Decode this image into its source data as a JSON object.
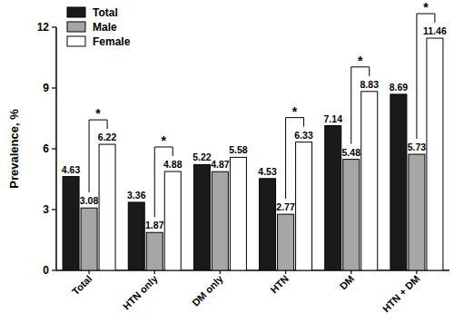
{
  "chart_data": {
    "type": "bar",
    "ylabel": "Prevalence, %",
    "categories": [
      "Total",
      "HTN only",
      "DM only",
      "HTN",
      "DM",
      "HTN + DM"
    ],
    "series": [
      {
        "name": "Total",
        "color": "#1a1a1a",
        "values": [
          4.63,
          3.36,
          5.22,
          4.53,
          7.14,
          8.69
        ]
      },
      {
        "name": "Male",
        "color": "#a6a6a6",
        "values": [
          3.08,
          1.87,
          4.87,
          2.77,
          5.48,
          5.73
        ]
      },
      {
        "name": "Female",
        "color": "#ffffff",
        "values": [
          6.22,
          4.88,
          5.58,
          6.33,
          8.83,
          11.46
        ]
      }
    ],
    "ylim": [
      0,
      12
    ],
    "yticks": [
      0,
      3,
      6,
      9,
      12
    ],
    "grid": false,
    "legend": "top-left",
    "data_labels": true,
    "annotations": [
      {
        "category": "Total",
        "text": "*"
      },
      {
        "category": "HTN only",
        "text": "*"
      },
      {
        "category": "HTN",
        "text": "*"
      },
      {
        "category": "DM",
        "text": "*"
      },
      {
        "category": "HTN + DM",
        "text": "*"
      }
    ]
  }
}
